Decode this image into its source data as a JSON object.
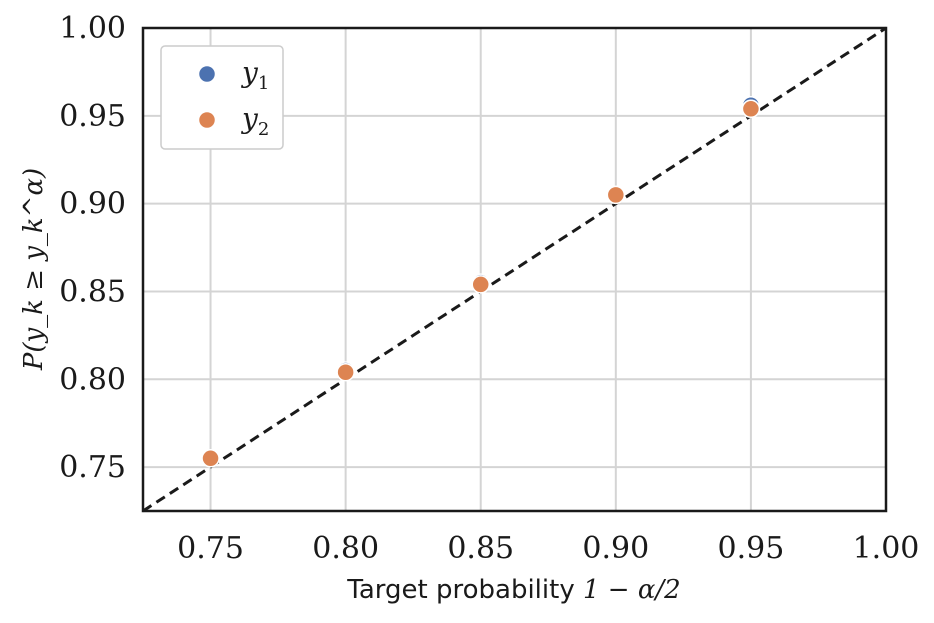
{
  "chart_data": {
    "type": "scatter",
    "xlabel_text": "Target probability ",
    "xlabel_math": "1 − α/2",
    "ylabel": "P(y_k ≥ y_k^α)",
    "xlim": [
      0.725,
      1.0
    ],
    "ylim": [
      0.725,
      1.0
    ],
    "x_ticks": [
      "0.75",
      "0.80",
      "0.85",
      "0.90",
      "0.95",
      "1.00"
    ],
    "y_ticks": [
      "0.75",
      "0.80",
      "0.85",
      "0.90",
      "0.95",
      "1.00"
    ],
    "grid": true,
    "legend_position": "top-left",
    "reference_line": {
      "style": "dashed",
      "color": "#1a1a1a",
      "from": [
        0.725,
        0.725
      ],
      "to": [
        1.0,
        1.0
      ]
    },
    "series": [
      {
        "name": "y1",
        "label_base": "y",
        "label_sub": "1",
        "color": "#4c72b0",
        "x": [
          0.75,
          0.8,
          0.85,
          0.9,
          0.95
        ],
        "y": [
          0.755,
          0.805,
          0.855,
          0.905,
          0.956
        ]
      },
      {
        "name": "y2",
        "label_base": "y",
        "label_sub": "2",
        "color": "#dd8452",
        "x": [
          0.75,
          0.8,
          0.85,
          0.9,
          0.95
        ],
        "y": [
          0.755,
          0.804,
          0.854,
          0.905,
          0.954
        ]
      }
    ]
  }
}
